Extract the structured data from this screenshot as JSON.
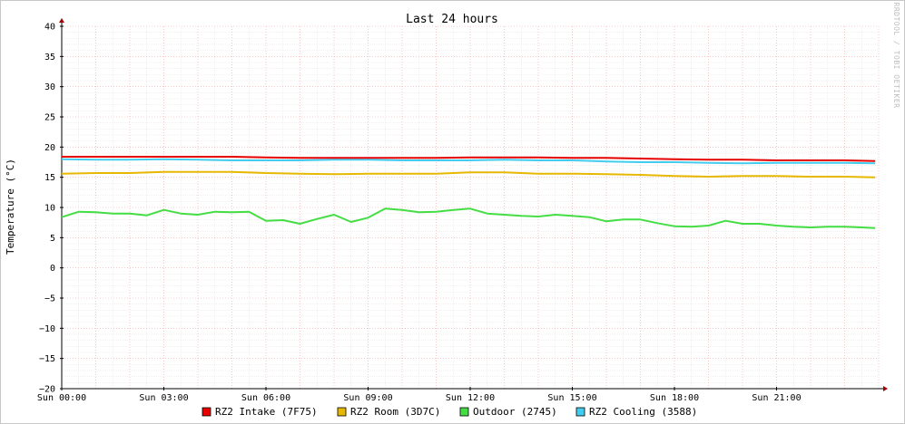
{
  "chart_data": {
    "type": "line",
    "title": "Last 24 hours",
    "ylabel": "Temperature (°C)",
    "xlabel": "",
    "ylim": [
      -20,
      40
    ],
    "y_ticks": [
      40,
      35,
      30,
      25,
      20,
      15,
      10,
      5,
      0,
      -5,
      -10,
      -15,
      -20
    ],
    "y_tick_labels": [
      "40",
      "35",
      "30",
      "25",
      "20",
      "15",
      "10",
      "5",
      "0",
      "−5",
      "−10",
      "−15",
      "−20"
    ],
    "xlim": [
      0,
      24
    ],
    "x_ticks": [
      0,
      3,
      6,
      9,
      12,
      15,
      18,
      21
    ],
    "x_tick_labels": [
      "Sun 00:00",
      "Sun 03:00",
      "Sun 06:00",
      "Sun 09:00",
      "Sun 12:00",
      "Sun 15:00",
      "Sun 18:00",
      "Sun 21:00"
    ],
    "grid": true,
    "legend_position": "bottom",
    "watermark": "RRDTOOL / TOBI OETIKER",
    "series": [
      {
        "name": "RZ2 Intake (7F75)",
        "color": "#e60000",
        "x": [
          0,
          1,
          2,
          3,
          4,
          5,
          6,
          7,
          8,
          9,
          10,
          11,
          12,
          13,
          14,
          15,
          16,
          17,
          18,
          19,
          20,
          21,
          22,
          23,
          23.9
        ],
        "values": [
          18.4,
          18.4,
          18.4,
          18.4,
          18.4,
          18.4,
          18.3,
          18.2,
          18.2,
          18.2,
          18.2,
          18.2,
          18.3,
          18.3,
          18.3,
          18.2,
          18.2,
          18.1,
          18.0,
          17.9,
          17.9,
          17.8,
          17.8,
          17.8,
          17.7
        ]
      },
      {
        "name": "RZ2 Room (3D7C)",
        "color": "#e6b800",
        "x": [
          0,
          1,
          2,
          3,
          4,
          5,
          6,
          7,
          8,
          9,
          10,
          11,
          12,
          13,
          14,
          15,
          16,
          17,
          18,
          19,
          20,
          21,
          22,
          23,
          23.9
        ],
        "values": [
          15.6,
          15.7,
          15.7,
          15.9,
          15.9,
          15.9,
          15.7,
          15.6,
          15.5,
          15.6,
          15.6,
          15.6,
          15.8,
          15.8,
          15.6,
          15.6,
          15.5,
          15.4,
          15.2,
          15.1,
          15.2,
          15.2,
          15.1,
          15.1,
          15.0
        ]
      },
      {
        "name": "Outdoor (2745)",
        "color": "#44dd44",
        "x": [
          0,
          0.5,
          1,
          1.5,
          2,
          2.5,
          3,
          3.5,
          4,
          4.5,
          5,
          5.5,
          6,
          6.5,
          7,
          7.5,
          8,
          8.5,
          9,
          9.5,
          10,
          10.5,
          11,
          11.5,
          12,
          12.5,
          13,
          13.5,
          14,
          14.5,
          15,
          15.5,
          16,
          16.5,
          17,
          17.5,
          18,
          18.5,
          19,
          19.5,
          20,
          20.5,
          21,
          21.5,
          22,
          22.5,
          23,
          23.5,
          23.9
        ],
        "values": [
          8.4,
          9.3,
          9.2,
          9.0,
          9.0,
          8.7,
          9.6,
          9.0,
          8.8,
          9.3,
          9.2,
          9.3,
          7.8,
          7.9,
          7.3,
          8.1,
          8.8,
          7.6,
          8.3,
          9.8,
          9.6,
          9.2,
          9.3,
          9.6,
          9.8,
          9.0,
          8.8,
          8.6,
          8.5,
          8.8,
          8.6,
          8.4,
          7.7,
          8.0,
          8.0,
          7.4,
          6.9,
          6.8,
          7.0,
          7.8,
          7.3,
          7.3,
          7.0,
          6.8,
          6.7,
          6.8,
          6.8,
          6.7,
          6.6
        ]
      },
      {
        "name": "RZ2 Cooling (3588)",
        "color": "#44ccee",
        "x": [
          0,
          1,
          2,
          3,
          4,
          5,
          6,
          7,
          8,
          9,
          10,
          11,
          12,
          13,
          14,
          15,
          16,
          17,
          18,
          19,
          20,
          21,
          22,
          23,
          23.9
        ],
        "values": [
          18.0,
          17.9,
          17.9,
          18.0,
          17.9,
          17.8,
          17.8,
          17.8,
          17.9,
          17.9,
          17.8,
          17.8,
          17.8,
          17.9,
          17.8,
          17.8,
          17.6,
          17.5,
          17.5,
          17.4,
          17.3,
          17.4,
          17.4,
          17.4,
          17.3
        ]
      }
    ]
  }
}
